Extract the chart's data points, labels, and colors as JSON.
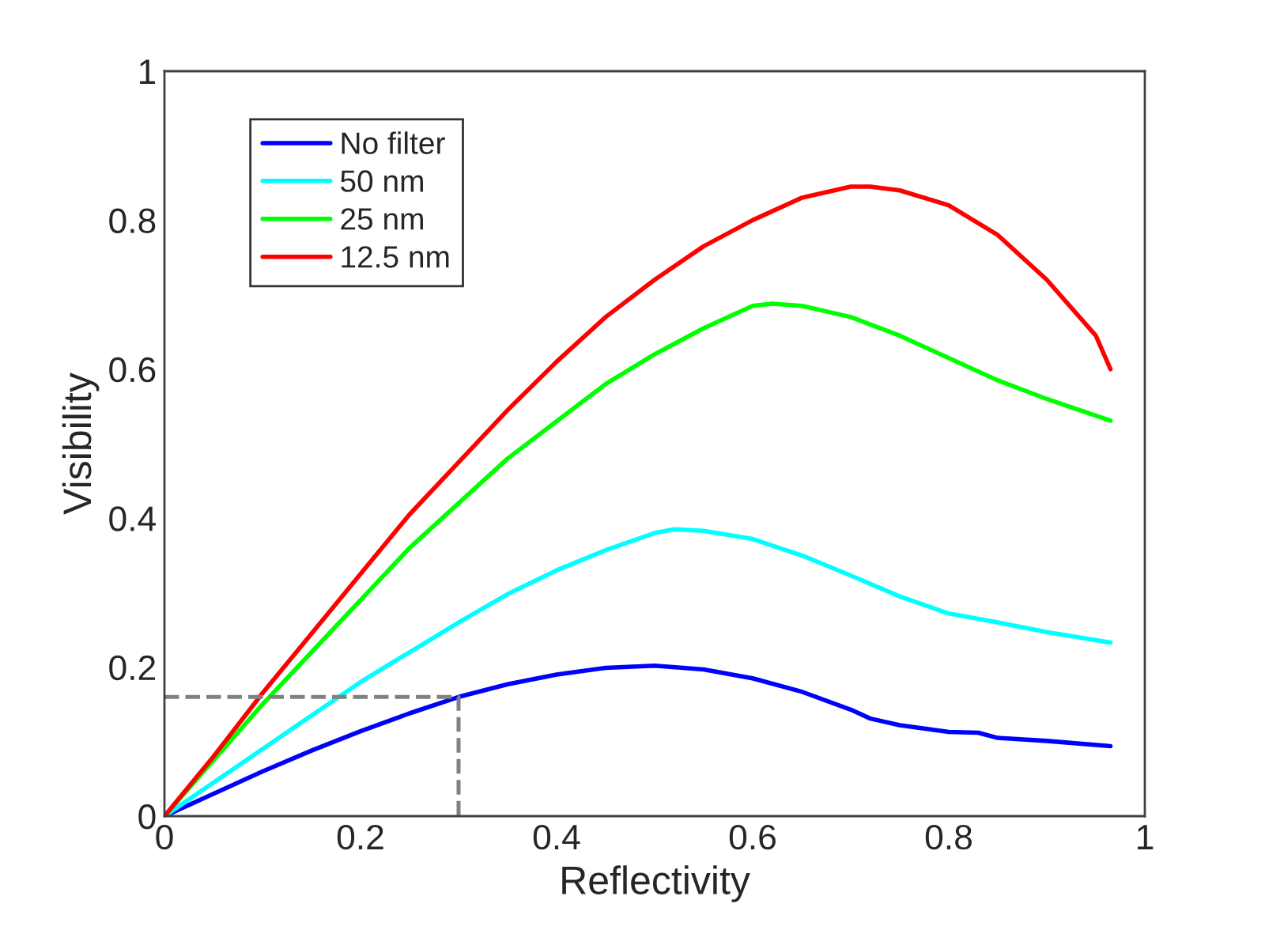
{
  "chart_data": {
    "type": "line",
    "xlabel": "Reflectivity",
    "ylabel": "Visibility",
    "xlim": [
      0,
      1
    ],
    "ylim": [
      0,
      1
    ],
    "xticks": [
      0,
      0.2,
      0.4,
      0.6,
      0.8,
      1
    ],
    "yticks": [
      0,
      0.2,
      0.4,
      0.6,
      0.8,
      1
    ],
    "grid": false,
    "legend": "top left",
    "line_style": "solid",
    "series": [
      {
        "name": "No filter",
        "color": "#0000ff",
        "x": [
          0,
          0.05,
          0.1,
          0.15,
          0.2,
          0.25,
          0.3,
          0.35,
          0.4,
          0.45,
          0.5,
          0.55,
          0.6,
          0.65,
          0.7,
          0.72,
          0.75,
          0.8,
          0.83,
          0.85,
          0.9,
          0.965
        ],
        "values": [
          0,
          0.03,
          0.06,
          0.088,
          0.114,
          0.138,
          0.16,
          0.177,
          0.19,
          0.199,
          0.202,
          0.197,
          0.185,
          0.167,
          0.143,
          0.131,
          0.122,
          0.113,
          0.112,
          0.105,
          0.101,
          0.094
        ]
      },
      {
        "name": "50 nm",
        "color": "#00ffff",
        "x": [
          0,
          0.05,
          0.1,
          0.15,
          0.2,
          0.25,
          0.3,
          0.35,
          0.4,
          0.45,
          0.5,
          0.52,
          0.55,
          0.6,
          0.65,
          0.7,
          0.75,
          0.8,
          0.85,
          0.9,
          0.965
        ],
        "values": [
          0,
          0.045,
          0.09,
          0.135,
          0.18,
          0.22,
          0.26,
          0.298,
          0.33,
          0.357,
          0.38,
          0.385,
          0.383,
          0.372,
          0.35,
          0.323,
          0.295,
          0.272,
          0.26,
          0.247,
          0.233
        ]
      },
      {
        "name": "25 nm",
        "color": "#00ff00",
        "x": [
          0,
          0.05,
          0.1,
          0.15,
          0.2,
          0.25,
          0.3,
          0.35,
          0.4,
          0.45,
          0.5,
          0.55,
          0.6,
          0.62,
          0.65,
          0.7,
          0.75,
          0.8,
          0.85,
          0.9,
          0.965
        ],
        "values": [
          0,
          0.075,
          0.15,
          0.22,
          0.29,
          0.36,
          0.42,
          0.48,
          0.53,
          0.58,
          0.62,
          0.655,
          0.685,
          0.688,
          0.685,
          0.67,
          0.645,
          0.615,
          0.585,
          0.56,
          0.531
        ]
      },
      {
        "name": "12.5 nm",
        "color": "#ff0000",
        "x": [
          0,
          0.05,
          0.1,
          0.15,
          0.2,
          0.25,
          0.3,
          0.35,
          0.4,
          0.45,
          0.5,
          0.55,
          0.6,
          0.65,
          0.7,
          0.72,
          0.75,
          0.8,
          0.85,
          0.9,
          0.95,
          0.965
        ],
        "values": [
          0,
          0.08,
          0.165,
          0.245,
          0.325,
          0.405,
          0.475,
          0.545,
          0.61,
          0.67,
          0.72,
          0.765,
          0.8,
          0.83,
          0.845,
          0.845,
          0.84,
          0.82,
          0.78,
          0.72,
          0.645,
          0.6
        ]
      },
      {
        "color": "#808080",
        "line_style": "dashed",
        "x": [
          0,
          0.3,
          0.3
        ],
        "values": [
          0.16,
          0.16,
          0
        ]
      }
    ]
  }
}
